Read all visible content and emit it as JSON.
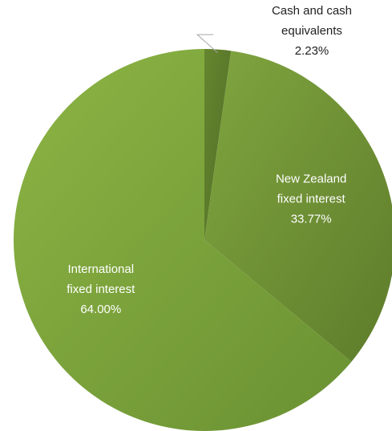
{
  "chart_data": {
    "type": "pie",
    "title": "",
    "categories": [
      "Cash and cash equivalents",
      "New Zealand fixed interest",
      "International fixed interest"
    ],
    "values": [
      2.23,
      33.77,
      64.0
    ],
    "unit": "%",
    "start_angle_deg": 0,
    "direction": "clockwise",
    "legend": "none",
    "slices": [
      {
        "name": "Cash and cash equivalents",
        "value": 2.23,
        "label_lines": [
          "Cash and cash",
          "equivalents",
          "2.23%"
        ],
        "label_color": "#222222",
        "color": "#5c7a2a",
        "gradient": [
          "#658630",
          "#526e25"
        ],
        "label_placement": "outside-with-leader"
      },
      {
        "name": "New Zealand fixed interest",
        "value": 33.77,
        "label_lines": [
          "New Zealand",
          "fixed interest",
          "33.77%"
        ],
        "label_color": "#ffffff",
        "color": "#6f9235",
        "gradient": [
          "#80a53f",
          "#5e7c2b"
        ],
        "label_placement": "inside"
      },
      {
        "name": "International fixed interest",
        "value": 64.0,
        "label_lines": [
          "International",
          "fixed interest",
          "64.00%"
        ],
        "label_color": "#ffffff",
        "color": "#7ea63c",
        "gradient": [
          "#8cb444",
          "#6a9132"
        ],
        "label_placement": "inside"
      }
    ]
  },
  "colors": {
    "background": "#ffffff",
    "leader_line": "#a6a6a6"
  }
}
